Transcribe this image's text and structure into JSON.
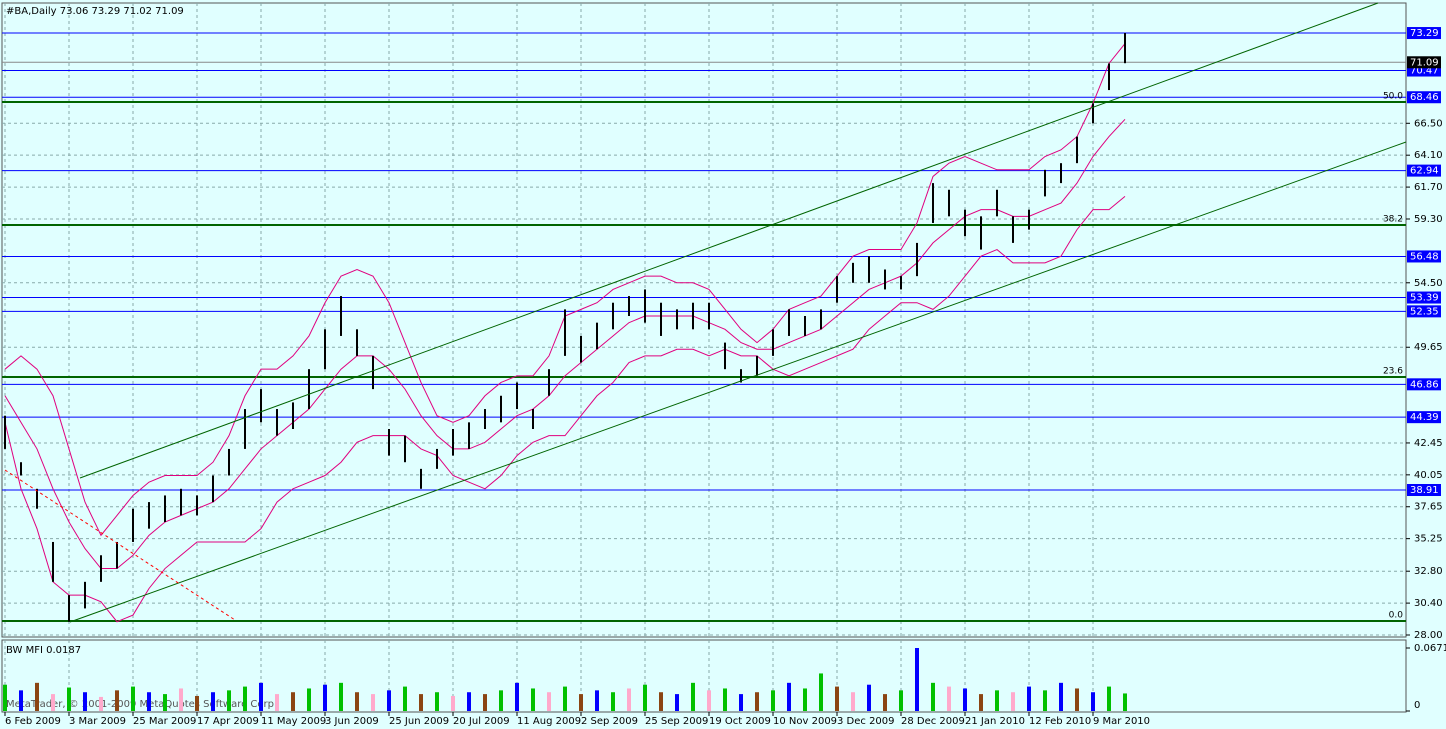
{
  "chart_data": {
    "type": "ohlc",
    "title": "#BA,Daily  73.06 73.29 71.02 71.09",
    "categories": [
      "6 Feb 2009",
      null,
      null,
      null,
      "3 Mar 2009",
      null,
      null,
      null,
      "25 Mar 2009",
      null,
      null,
      null,
      "17 Apr 2009",
      null,
      null,
      null,
      "11 May 2009",
      null,
      null,
      null,
      "3 Jun 2009",
      null,
      null,
      null,
      "25 Jun 2009",
      null,
      null,
      null,
      "20 Jul 2009",
      null,
      null,
      null,
      "11 Aug 2009",
      null,
      null,
      null,
      "2 Sep 2009",
      null,
      null,
      null,
      "25 Sep 2009",
      null,
      null,
      null,
      "19 Oct 2009",
      null,
      null,
      null,
      "10 Nov 2009",
      null,
      null,
      null,
      "3 Dec 2009",
      null,
      null,
      null,
      "28 Dec 2009",
      null,
      null,
      null,
      "21 Jan 2010",
      null,
      null,
      null,
      "12 Feb 2010",
      null,
      null,
      null,
      "9 Mar 2010",
      null,
      null
    ],
    "series": [
      {
        "name": "High",
        "color": "#000000",
        "values": [
          44.5,
          41,
          39,
          35,
          31,
          32,
          34,
          35,
          37.5,
          38,
          38.5,
          39,
          38.5,
          40,
          42,
          45,
          46.5,
          45,
          45.5,
          48,
          51,
          53.5,
          51,
          49,
          43.5,
          43,
          40.5,
          42,
          43.5,
          44,
          45,
          46,
          47,
          45,
          48,
          52.5,
          50.5,
          51.5,
          53,
          53.5,
          54,
          53,
          52.5,
          53,
          53,
          50,
          48,
          49,
          51,
          52.5,
          52,
          52.5,
          55,
          56,
          56.5,
          55.5,
          55,
          57.5,
          62,
          61.5,
          60,
          59.5,
          61.5,
          59.5,
          60,
          63,
          63.5,
          65.5,
          68,
          71,
          73.29
        ]
      },
      {
        "name": "Low",
        "color": "#000000",
        "values": [
          42,
          40,
          37.5,
          32,
          29,
          30,
          32,
          33,
          35,
          36,
          36.5,
          37,
          37,
          38,
          40,
          42,
          44,
          43,
          43.5,
          45,
          48,
          50.5,
          49,
          46.5,
          41.5,
          41,
          39,
          40.5,
          41.5,
          42,
          43.5,
          44,
          45,
          43.5,
          46,
          49,
          48.5,
          49.5,
          51,
          52,
          51.5,
          50.5,
          51,
          51,
          51,
          48,
          47,
          47.5,
          49,
          50.5,
          50.5,
          51,
          53,
          54.5,
          54.5,
          54,
          54,
          55,
          59,
          59.5,
          58,
          57,
          59.5,
          57.5,
          58.5,
          61,
          62,
          63.5,
          66.5,
          69,
          71.02
        ]
      }
    ],
    "bands": {
      "color": "#e0007f",
      "upper": [
        48,
        49,
        48,
        46,
        42,
        38,
        35.5,
        37,
        38.5,
        39.5,
        40,
        40,
        40,
        41,
        43,
        46,
        48,
        48,
        49,
        50.5,
        53,
        55,
        55.5,
        55,
        53,
        50,
        47,
        44.5,
        44,
        44.5,
        46,
        47,
        47.5,
        47.5,
        49,
        52,
        52.5,
        53,
        54,
        54.5,
        55,
        55,
        54.5,
        54.5,
        54,
        52.5,
        51,
        50,
        51,
        52.5,
        53,
        53.5,
        55,
        56.5,
        57,
        57,
        57,
        59,
        62.5,
        63.5,
        64,
        63.5,
        63,
        63,
        63,
        64,
        64.5,
        65.5,
        68,
        71,
        72.5
      ],
      "middle": [
        46,
        44,
        42,
        39,
        36.5,
        34.5,
        33,
        33,
        34,
        35.5,
        36.5,
        37,
        37.5,
        38,
        39,
        40.5,
        42,
        43,
        44,
        45,
        46.5,
        48,
        49,
        49,
        48,
        46.5,
        44.5,
        43,
        42,
        42,
        42.5,
        43.5,
        44.5,
        45,
        46,
        47.5,
        48.5,
        49.5,
        50.5,
        51.5,
        52,
        52,
        52,
        52,
        51.5,
        51,
        50,
        49.5,
        49.5,
        50,
        50.5,
        51,
        52,
        53,
        54,
        54.5,
        55,
        56,
        57.5,
        58.5,
        59.5,
        60,
        60,
        59.5,
        59.5,
        60,
        60.5,
        62,
        64,
        65.5,
        66.8
      ],
      "lower": [
        44,
        39,
        36,
        32,
        31,
        31,
        30.5,
        29,
        29.5,
        31.5,
        33,
        34,
        35,
        35,
        35,
        35,
        36,
        38,
        39,
        39.5,
        40,
        41,
        42.5,
        43,
        43,
        43,
        42,
        41.5,
        40,
        39.5,
        39,
        40,
        41.5,
        42.5,
        43,
        43,
        44.5,
        46,
        47,
        48.5,
        49,
        49,
        49.5,
        49.5,
        49,
        49.5,
        49,
        49,
        48,
        47.5,
        48,
        48.5,
        49,
        49.5,
        51,
        52,
        53,
        53,
        52.5,
        53.5,
        55,
        56.5,
        57,
        56,
        56,
        56,
        56.5,
        58.5,
        60,
        60,
        61
      ]
    },
    "ylim": [
      27.85,
      75.55
    ],
    "yticks": [
      {
        "value": 66.5,
        "label": "66.50"
      },
      {
        "value": 64.1,
        "label": "64.10"
      },
      {
        "value": 61.7,
        "label": "61.70"
      },
      {
        "value": 59.3,
        "label": "59.30"
      },
      {
        "value": 54.5,
        "label": "54.50"
      },
      {
        "value": 49.65,
        "label": "49.65"
      },
      {
        "value": 42.45,
        "label": "42.45"
      },
      {
        "value": 40.05,
        "label": "40.05"
      },
      {
        "value": 37.65,
        "label": "37.65"
      },
      {
        "value": 35.25,
        "label": "35.25"
      },
      {
        "value": 32.8,
        "label": "32.80"
      },
      {
        "value": 30.4,
        "label": "30.40"
      },
      {
        "value": 28,
        "label": "28.00"
      }
    ],
    "grid": true,
    "levels": {
      "color": "#0000ff",
      "values": [
        73.29,
        70.47,
        68.46,
        62.94,
        56.48,
        53.39,
        52.35,
        46.86,
        44.39,
        38.91
      ]
    },
    "current_price": 71.09,
    "fibonacci": {
      "color": "#006400",
      "levels": [
        {
          "value": 68.1,
          "label": "50.0"
        },
        {
          "value": 58.85,
          "label": "38.2"
        },
        {
          "value": 47.41,
          "label": "23.6"
        },
        {
          "value": 29.05,
          "label": "0.0"
        }
      ]
    },
    "indicator": {
      "type": "bar",
      "title": "BW MFI 0.0187",
      "ylim": [
        0,
        0.0671
      ],
      "yticks": [
        0.0671,
        0
      ],
      "values": [
        0.028,
        0.022,
        0.03,
        0.018,
        0.025,
        0.02,
        0.015,
        0.022,
        0.026,
        0.02,
        0.018,
        0.024,
        0.016,
        0.02,
        0.022,
        0.026,
        0.03,
        0.018,
        0.02,
        0.024,
        0.028,
        0.03,
        0.02,
        0.018,
        0.022,
        0.026,
        0.018,
        0.02,
        0.016,
        0.02,
        0.018,
        0.022,
        0.03,
        0.024,
        0.02,
        0.026,
        0.018,
        0.022,
        0.02,
        0.024,
        0.028,
        0.02,
        0.018,
        0.03,
        0.022,
        0.024,
        0.018,
        0.02,
        0.022,
        0.03,
        0.024,
        0.04,
        0.026,
        0.02,
        0.028,
        0.018,
        0.022,
        0.0671,
        0.03,
        0.026,
        0.024,
        0.018,
        0.022,
        0.02,
        0.026,
        0.022,
        0.03,
        0.024,
        0.02,
        0.026,
        0.0187
      ],
      "colors": [
        "#00c000",
        "#0000ff",
        "#8b4513",
        "#ffaacc",
        "#00c000",
        "#0000ff",
        "#ffaacc",
        "#8b4513",
        "#00c000",
        "#0000ff",
        "#00c000",
        "#ffaacc",
        "#8b4513",
        "#0000ff",
        "#00c000",
        "#00c000",
        "#0000ff",
        "#ffaacc",
        "#8b4513",
        "#00c000",
        "#0000ff",
        "#00c000",
        "#8b4513",
        "#ffaacc",
        "#0000ff",
        "#00c000",
        "#8b4513",
        "#00c000",
        "#ffaacc",
        "#0000ff",
        "#8b4513",
        "#00c000",
        "#0000ff",
        "#00c000",
        "#ffaacc",
        "#00c000",
        "#8b4513",
        "#0000ff",
        "#00c000",
        "#ffaacc",
        "#00c000",
        "#8b4513",
        "#0000ff",
        "#00c000",
        "#ffaacc",
        "#00c000",
        "#0000ff",
        "#8b4513",
        "#00c000",
        "#0000ff",
        "#00c000",
        "#00c000",
        "#8b4513",
        "#ffaacc",
        "#0000ff",
        "#8b4513",
        "#00c000",
        "#0000ff",
        "#00c000",
        "#ffaacc",
        "#0000ff",
        "#8b4513",
        "#00c000",
        "#ffaacc",
        "#0000ff",
        "#00c000",
        "#0000ff",
        "#8b4513",
        "#0000ff",
        "#00c000",
        "#00c000"
      ]
    },
    "watermark": "MetaTrader, © 2001-2009 MetaQuotes Software Corp."
  }
}
